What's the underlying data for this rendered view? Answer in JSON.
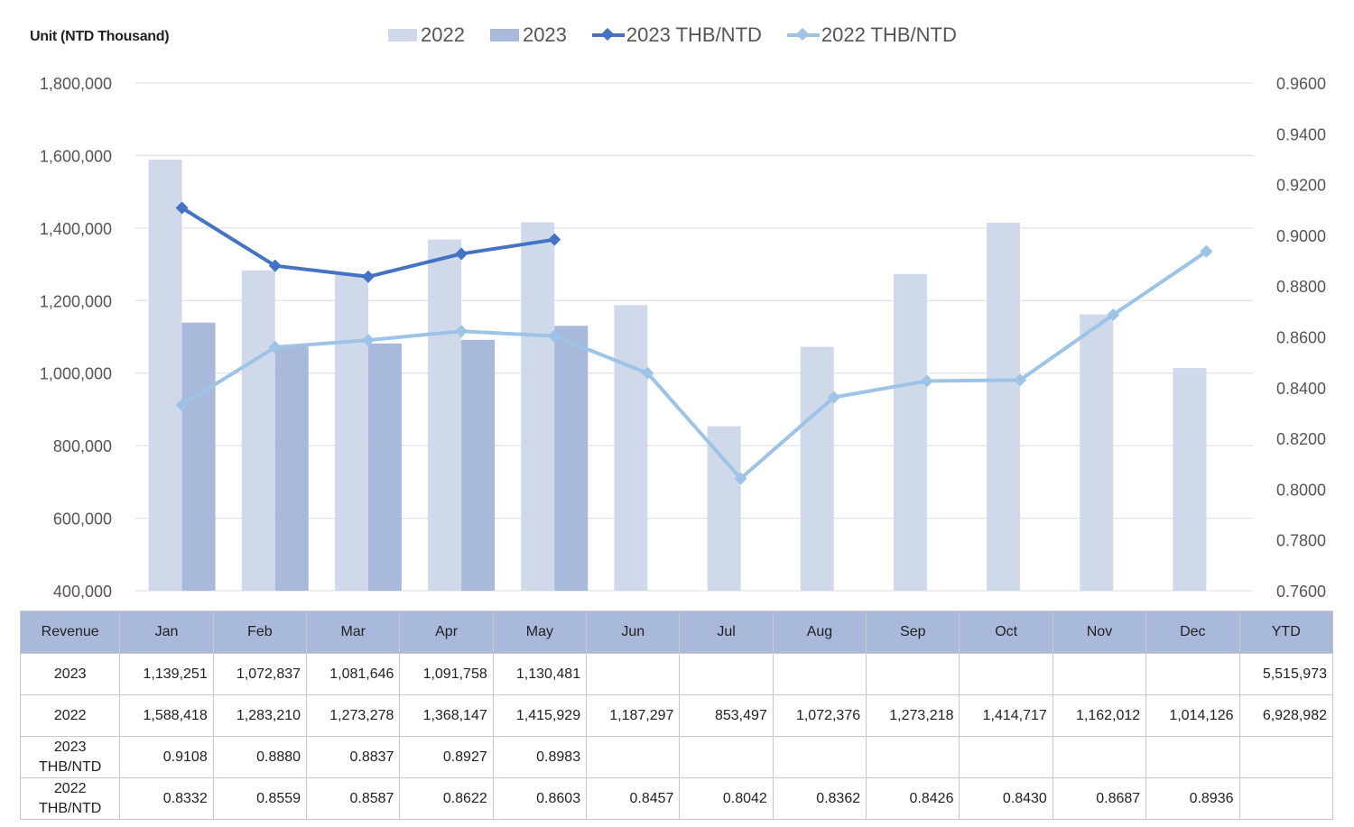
{
  "unit_label": "Unit (NTD  Thousand)",
  "legend": [
    {
      "label": "2022",
      "kind": "bar",
      "color": "#cfd9ea"
    },
    {
      "label": "2023",
      "kind": "bar",
      "color": "#a8b9dc"
    },
    {
      "label": "2023 THB/NTD",
      "kind": "line",
      "color": "#4472c4"
    },
    {
      "label": "2022 THB/NTD",
      "kind": "line",
      "color": "#9dc3e6"
    }
  ],
  "chart_data": {
    "type": "bar",
    "categories": [
      "Jan",
      "Feb",
      "Mar",
      "Apr",
      "May",
      "Jun",
      "Jul",
      "Aug",
      "Sep",
      "Oct",
      "Nov",
      "Dec"
    ],
    "series": [
      {
        "name": "2022",
        "type": "bar",
        "axis": "left",
        "color": "#cfd9ea",
        "values": [
          1588418,
          1283210,
          1273278,
          1368147,
          1415929,
          1187297,
          853497,
          1072376,
          1273218,
          1414717,
          1162012,
          1014126
        ]
      },
      {
        "name": "2023",
        "type": "bar",
        "axis": "left",
        "color": "#a8b9dc",
        "values": [
          1139251,
          1072837,
          1081646,
          1091758,
          1130481,
          null,
          null,
          null,
          null,
          null,
          null,
          null
        ]
      },
      {
        "name": "2023 THB/NTD",
        "type": "line",
        "axis": "right",
        "color": "#4472c4",
        "values": [
          0.9108,
          0.888,
          0.8837,
          0.8927,
          0.8983,
          null,
          null,
          null,
          null,
          null,
          null,
          null
        ]
      },
      {
        "name": "2022 THB/NTD",
        "type": "line",
        "axis": "right",
        "color": "#9dc3e6",
        "values": [
          0.8332,
          0.8559,
          0.8587,
          0.8622,
          0.8603,
          0.8457,
          0.8042,
          0.8362,
          0.8426,
          0.843,
          0.8687,
          0.8936
        ]
      }
    ],
    "ylim_left": [
      400000,
      1800000
    ],
    "ylim_right": [
      0.76,
      0.96
    ],
    "left_ticks": [
      400000,
      600000,
      800000,
      1000000,
      1200000,
      1400000,
      1600000,
      1800000
    ],
    "left_tick_labels": [
      "400,000",
      "600,000",
      "800,000",
      "1,000,000",
      "1,200,000",
      "1,400,000",
      "1,600,000",
      "1,800,000"
    ],
    "right_ticks": [
      0.76,
      0.78,
      0.8,
      0.82,
      0.84,
      0.86,
      0.88,
      0.9,
      0.92,
      0.94,
      0.96
    ],
    "right_tick_labels": [
      "0.7600",
      "0.7800",
      "0.8000",
      "0.8200",
      "0.8400",
      "0.8600",
      "0.8800",
      "0.9000",
      "0.9200",
      "0.9400",
      "0.9600"
    ],
    "grid": true,
    "legend_position": "top"
  },
  "table": {
    "header": [
      "Revenue",
      "Jan",
      "Feb",
      "Mar",
      "Apr",
      "May",
      "Jun",
      "Jul",
      "Aug",
      "Sep",
      "Oct",
      "Nov",
      "Dec",
      "YTD"
    ],
    "rows": [
      {
        "label_lines": [
          "2023"
        ],
        "cells": [
          "1,139,251",
          "1,072,837",
          "1,081,646",
          "1,091,758",
          "1,130,481",
          "",
          "",
          "",
          "",
          "",
          "",
          "",
          "5,515,973"
        ]
      },
      {
        "label_lines": [
          "2022"
        ],
        "cells": [
          "1,588,418",
          "1,283,210",
          "1,273,278",
          "1,368,147",
          "1,415,929",
          "1,187,297",
          "853,497",
          "1,072,376",
          "1,273,218",
          "1,414,717",
          "1,162,012",
          "1,014,126",
          "6,928,982"
        ]
      },
      {
        "label_lines": [
          "2023",
          "THB/NTD"
        ],
        "cells": [
          "0.9108",
          "0.8880",
          "0.8837",
          "0.8927",
          "0.8983",
          "",
          "",
          "",
          "",
          "",
          "",
          "",
          ""
        ]
      },
      {
        "label_lines": [
          "2022",
          "THB/NTD"
        ],
        "cells": [
          "0.8332",
          "0.8559",
          "0.8587",
          "0.8622",
          "0.8603",
          "0.8457",
          "0.8042",
          "0.8362",
          "0.8426",
          "0.8430",
          "0.8687",
          "0.8936",
          ""
        ]
      }
    ]
  }
}
